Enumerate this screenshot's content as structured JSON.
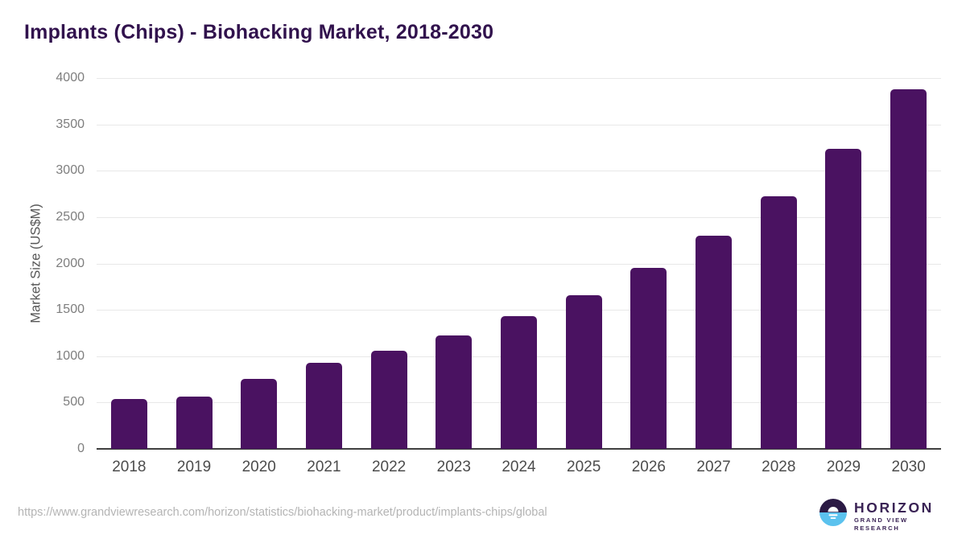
{
  "title": "Implants (Chips) - Biohacking Market, 2018-2030",
  "chart_data": {
    "type": "bar",
    "title": "Implants (Chips) - Biohacking Market, 2018-2030",
    "categories": [
      "2018",
      "2019",
      "2020",
      "2021",
      "2022",
      "2023",
      "2024",
      "2025",
      "2026",
      "2027",
      "2028",
      "2029",
      "2030"
    ],
    "values": [
      535,
      561,
      754,
      926,
      1061,
      1226,
      1432,
      1661,
      1952,
      2299,
      2728,
      3235,
      3878
    ],
    "xlabel": "",
    "ylabel": "Market Size (US$M)",
    "ylim": [
      0,
      4000
    ],
    "yticks": [
      0,
      500,
      1000,
      1500,
      2000,
      2500,
      3000,
      3500,
      4000
    ],
    "grid": "horizontal",
    "legend": "none",
    "bar_color": "#4a1261"
  },
  "footer": {
    "source_url": "https://www.grandviewresearch.com/horizon/statistics/biohacking-market/product/implants-chips/global",
    "logo": {
      "brand": "HORIZON",
      "sub_brand": "GRAND VIEW RESEARCH",
      "mark_top_color": "#2b1a44",
      "mark_bottom_color": "#5bc2ee"
    }
  },
  "colors": {
    "title": "#31124d",
    "gridline": "#e8e8e8",
    "axis_line": "#3f3f3f",
    "y_tick": "#7e7e7e",
    "x_tick": "#4c4c4c",
    "url_text": "#b4b4b4"
  }
}
